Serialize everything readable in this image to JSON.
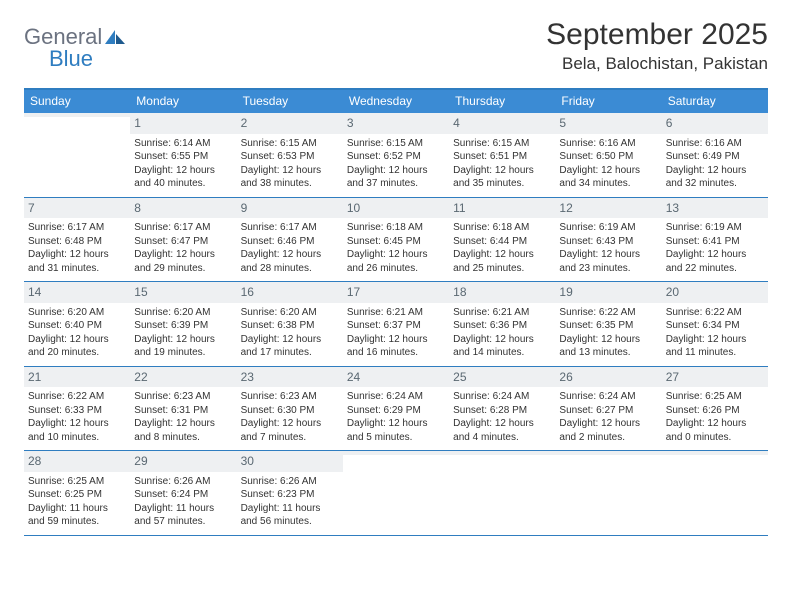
{
  "logo": {
    "word1": "General",
    "word2": "Blue"
  },
  "header": {
    "month_title": "September 2025",
    "location": "Bela, Balochistan, Pakistan"
  },
  "colors": {
    "header_bar": "#3b8bd4",
    "accent_border": "#2f7dc0",
    "daynum_bg": "#eef0f2",
    "daynum_color": "#5a6872",
    "text": "#333333",
    "logo_gray": "#6b7280",
    "logo_blue": "#2f7dc0"
  },
  "weekdays": [
    "Sunday",
    "Monday",
    "Tuesday",
    "Wednesday",
    "Thursday",
    "Friday",
    "Saturday"
  ],
  "weeks": [
    [
      {
        "n": "",
        "sunrise": "",
        "sunset": "",
        "daylight": ""
      },
      {
        "n": "1",
        "sunrise": "Sunrise: 6:14 AM",
        "sunset": "Sunset: 6:55 PM",
        "daylight": "Daylight: 12 hours and 40 minutes."
      },
      {
        "n": "2",
        "sunrise": "Sunrise: 6:15 AM",
        "sunset": "Sunset: 6:53 PM",
        "daylight": "Daylight: 12 hours and 38 minutes."
      },
      {
        "n": "3",
        "sunrise": "Sunrise: 6:15 AM",
        "sunset": "Sunset: 6:52 PM",
        "daylight": "Daylight: 12 hours and 37 minutes."
      },
      {
        "n": "4",
        "sunrise": "Sunrise: 6:15 AM",
        "sunset": "Sunset: 6:51 PM",
        "daylight": "Daylight: 12 hours and 35 minutes."
      },
      {
        "n": "5",
        "sunrise": "Sunrise: 6:16 AM",
        "sunset": "Sunset: 6:50 PM",
        "daylight": "Daylight: 12 hours and 34 minutes."
      },
      {
        "n": "6",
        "sunrise": "Sunrise: 6:16 AM",
        "sunset": "Sunset: 6:49 PM",
        "daylight": "Daylight: 12 hours and 32 minutes."
      }
    ],
    [
      {
        "n": "7",
        "sunrise": "Sunrise: 6:17 AM",
        "sunset": "Sunset: 6:48 PM",
        "daylight": "Daylight: 12 hours and 31 minutes."
      },
      {
        "n": "8",
        "sunrise": "Sunrise: 6:17 AM",
        "sunset": "Sunset: 6:47 PM",
        "daylight": "Daylight: 12 hours and 29 minutes."
      },
      {
        "n": "9",
        "sunrise": "Sunrise: 6:17 AM",
        "sunset": "Sunset: 6:46 PM",
        "daylight": "Daylight: 12 hours and 28 minutes."
      },
      {
        "n": "10",
        "sunrise": "Sunrise: 6:18 AM",
        "sunset": "Sunset: 6:45 PM",
        "daylight": "Daylight: 12 hours and 26 minutes."
      },
      {
        "n": "11",
        "sunrise": "Sunrise: 6:18 AM",
        "sunset": "Sunset: 6:44 PM",
        "daylight": "Daylight: 12 hours and 25 minutes."
      },
      {
        "n": "12",
        "sunrise": "Sunrise: 6:19 AM",
        "sunset": "Sunset: 6:43 PM",
        "daylight": "Daylight: 12 hours and 23 minutes."
      },
      {
        "n": "13",
        "sunrise": "Sunrise: 6:19 AM",
        "sunset": "Sunset: 6:41 PM",
        "daylight": "Daylight: 12 hours and 22 minutes."
      }
    ],
    [
      {
        "n": "14",
        "sunrise": "Sunrise: 6:20 AM",
        "sunset": "Sunset: 6:40 PM",
        "daylight": "Daylight: 12 hours and 20 minutes."
      },
      {
        "n": "15",
        "sunrise": "Sunrise: 6:20 AM",
        "sunset": "Sunset: 6:39 PM",
        "daylight": "Daylight: 12 hours and 19 minutes."
      },
      {
        "n": "16",
        "sunrise": "Sunrise: 6:20 AM",
        "sunset": "Sunset: 6:38 PM",
        "daylight": "Daylight: 12 hours and 17 minutes."
      },
      {
        "n": "17",
        "sunrise": "Sunrise: 6:21 AM",
        "sunset": "Sunset: 6:37 PM",
        "daylight": "Daylight: 12 hours and 16 minutes."
      },
      {
        "n": "18",
        "sunrise": "Sunrise: 6:21 AM",
        "sunset": "Sunset: 6:36 PM",
        "daylight": "Daylight: 12 hours and 14 minutes."
      },
      {
        "n": "19",
        "sunrise": "Sunrise: 6:22 AM",
        "sunset": "Sunset: 6:35 PM",
        "daylight": "Daylight: 12 hours and 13 minutes."
      },
      {
        "n": "20",
        "sunrise": "Sunrise: 6:22 AM",
        "sunset": "Sunset: 6:34 PM",
        "daylight": "Daylight: 12 hours and 11 minutes."
      }
    ],
    [
      {
        "n": "21",
        "sunrise": "Sunrise: 6:22 AM",
        "sunset": "Sunset: 6:33 PM",
        "daylight": "Daylight: 12 hours and 10 minutes."
      },
      {
        "n": "22",
        "sunrise": "Sunrise: 6:23 AM",
        "sunset": "Sunset: 6:31 PM",
        "daylight": "Daylight: 12 hours and 8 minutes."
      },
      {
        "n": "23",
        "sunrise": "Sunrise: 6:23 AM",
        "sunset": "Sunset: 6:30 PM",
        "daylight": "Daylight: 12 hours and 7 minutes."
      },
      {
        "n": "24",
        "sunrise": "Sunrise: 6:24 AM",
        "sunset": "Sunset: 6:29 PM",
        "daylight": "Daylight: 12 hours and 5 minutes."
      },
      {
        "n": "25",
        "sunrise": "Sunrise: 6:24 AM",
        "sunset": "Sunset: 6:28 PM",
        "daylight": "Daylight: 12 hours and 4 minutes."
      },
      {
        "n": "26",
        "sunrise": "Sunrise: 6:24 AM",
        "sunset": "Sunset: 6:27 PM",
        "daylight": "Daylight: 12 hours and 2 minutes."
      },
      {
        "n": "27",
        "sunrise": "Sunrise: 6:25 AM",
        "sunset": "Sunset: 6:26 PM",
        "daylight": "Daylight: 12 hours and 0 minutes."
      }
    ],
    [
      {
        "n": "28",
        "sunrise": "Sunrise: 6:25 AM",
        "sunset": "Sunset: 6:25 PM",
        "daylight": "Daylight: 11 hours and 59 minutes."
      },
      {
        "n": "29",
        "sunrise": "Sunrise: 6:26 AM",
        "sunset": "Sunset: 6:24 PM",
        "daylight": "Daylight: 11 hours and 57 minutes."
      },
      {
        "n": "30",
        "sunrise": "Sunrise: 6:26 AM",
        "sunset": "Sunset: 6:23 PM",
        "daylight": "Daylight: 11 hours and 56 minutes."
      },
      {
        "n": "",
        "sunrise": "",
        "sunset": "",
        "daylight": ""
      },
      {
        "n": "",
        "sunrise": "",
        "sunset": "",
        "daylight": ""
      },
      {
        "n": "",
        "sunrise": "",
        "sunset": "",
        "daylight": ""
      },
      {
        "n": "",
        "sunrise": "",
        "sunset": "",
        "daylight": ""
      }
    ]
  ]
}
